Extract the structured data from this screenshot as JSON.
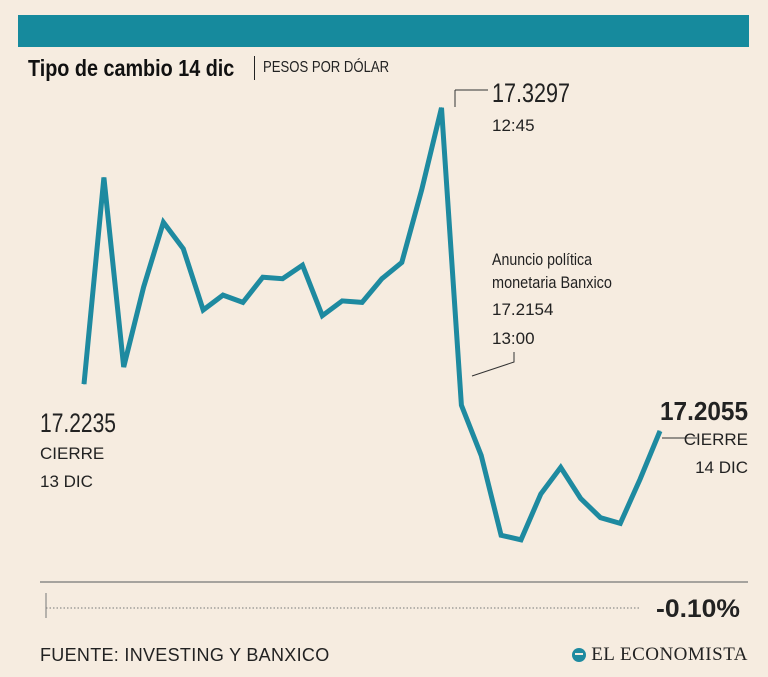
{
  "header": {
    "title": "Tipo de cambio 14 dic",
    "subtitle": "PESOS POR DÓLAR",
    "bar_color": "#168a9d"
  },
  "chart_data": {
    "type": "line",
    "title": "Tipo de cambio 14 dic",
    "ylabel": "PESOS POR DÓLAR",
    "xlabel": "",
    "line_color": "#1e8aa0",
    "ylim": [
      17.154,
      17.33
    ],
    "series": [
      {
        "name": "Tipo de cambio",
        "values": [
          17.2235,
          17.3029,
          17.2301,
          17.2608,
          17.2857,
          17.2755,
          17.252,
          17.2577,
          17.2549,
          17.2646,
          17.264,
          17.2692,
          17.2498,
          17.2555,
          17.2549,
          17.264,
          17.2703,
          17.2982,
          17.3297,
          17.2154,
          17.1961,
          17.1654,
          17.1637,
          17.1813,
          17.1915,
          17.1796,
          17.1722,
          17.17,
          17.187,
          17.2055
        ]
      }
    ],
    "annotations": {
      "start": {
        "value": "17.2235",
        "line1": "CIERRE",
        "line2": "13 DIC"
      },
      "peak": {
        "value": "17.3297",
        "time": "12:45"
      },
      "announcement": {
        "line1": "Anuncio política",
        "line2": "monetaria Banxico",
        "value": "17.2154",
        "time": "13:00"
      },
      "end": {
        "value": "17.2055",
        "line1": "CIERRE",
        "line2": "14 DIC"
      }
    },
    "change": "-0.10%"
  },
  "footer": {
    "source": "FUENTE: INVESTING Y BANXICO",
    "brand": "EL ECONOMISTA"
  }
}
